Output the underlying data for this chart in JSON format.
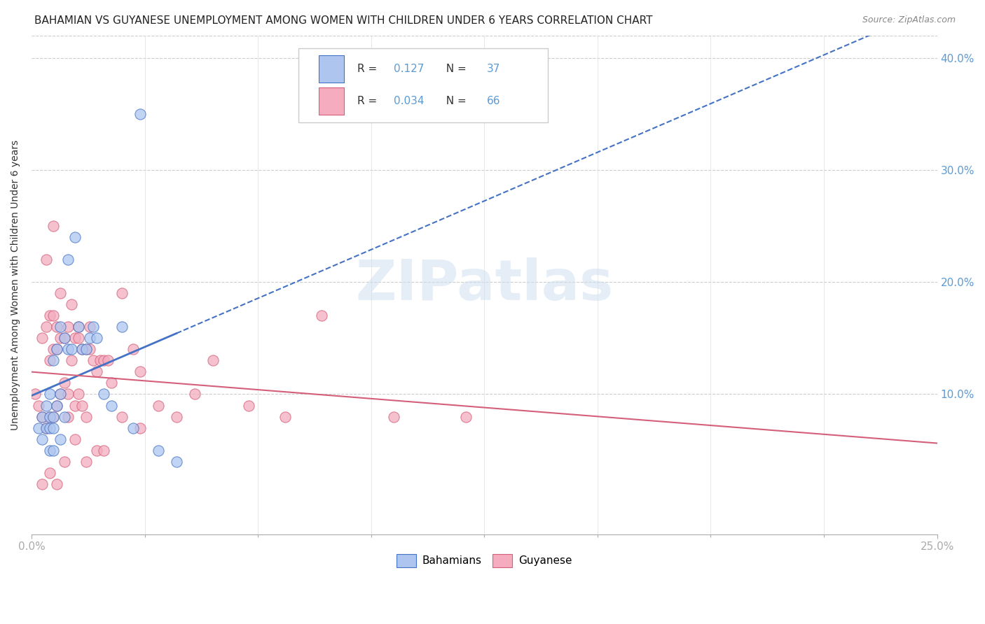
{
  "title": "BAHAMIAN VS GUYANESE UNEMPLOYMENT AMONG WOMEN WITH CHILDREN UNDER 6 YEARS CORRELATION CHART",
  "source": "Source: ZipAtlas.com",
  "ylabel": "Unemployment Among Women with Children Under 6 years",
  "background_color": "#ffffff",
  "watermark": "ZIPatlas",
  "legend_entries": [
    {
      "label": "Bahamians",
      "R": "0.127",
      "N": "37",
      "color": "#aec6ef",
      "line_color": "#4472c4"
    },
    {
      "label": "Guyanese",
      "R": "0.034",
      "N": "66",
      "color": "#f4acbe",
      "line_color": "#d45f7a"
    }
  ],
  "blue_scatter_x": [
    0.002,
    0.003,
    0.003,
    0.004,
    0.004,
    0.005,
    0.005,
    0.005,
    0.005,
    0.006,
    0.006,
    0.006,
    0.007,
    0.007,
    0.008,
    0.008,
    0.009,
    0.009,
    0.01,
    0.01,
    0.011,
    0.012,
    0.013,
    0.014,
    0.015,
    0.016,
    0.017,
    0.018,
    0.02,
    0.022,
    0.025,
    0.028,
    0.03,
    0.035,
    0.04,
    0.008,
    0.006
  ],
  "blue_scatter_y": [
    0.07,
    0.06,
    0.08,
    0.07,
    0.09,
    0.07,
    0.08,
    0.1,
    0.05,
    0.08,
    0.07,
    0.13,
    0.09,
    0.14,
    0.1,
    0.16,
    0.15,
    0.08,
    0.14,
    0.22,
    0.14,
    0.24,
    0.16,
    0.14,
    0.14,
    0.15,
    0.16,
    0.15,
    0.1,
    0.09,
    0.16,
    0.07,
    0.35,
    0.05,
    0.04,
    0.06,
    0.05
  ],
  "pink_scatter_x": [
    0.001,
    0.002,
    0.003,
    0.003,
    0.004,
    0.004,
    0.005,
    0.005,
    0.005,
    0.006,
    0.006,
    0.006,
    0.007,
    0.007,
    0.007,
    0.008,
    0.008,
    0.009,
    0.009,
    0.01,
    0.01,
    0.011,
    0.011,
    0.012,
    0.012,
    0.013,
    0.013,
    0.014,
    0.014,
    0.015,
    0.015,
    0.016,
    0.017,
    0.018,
    0.019,
    0.02,
    0.021,
    0.022,
    0.025,
    0.028,
    0.03,
    0.035,
    0.04,
    0.045,
    0.05,
    0.06,
    0.07,
    0.08,
    0.1,
    0.12,
    0.003,
    0.005,
    0.007,
    0.009,
    0.012,
    0.015,
    0.018,
    0.02,
    0.025,
    0.03,
    0.004,
    0.006,
    0.008,
    0.01,
    0.013,
    0.016
  ],
  "pink_scatter_y": [
    0.1,
    0.09,
    0.08,
    0.15,
    0.07,
    0.16,
    0.08,
    0.13,
    0.17,
    0.08,
    0.14,
    0.17,
    0.09,
    0.14,
    0.16,
    0.1,
    0.15,
    0.11,
    0.15,
    0.1,
    0.16,
    0.13,
    0.18,
    0.09,
    0.15,
    0.1,
    0.15,
    0.09,
    0.14,
    0.08,
    0.14,
    0.14,
    0.13,
    0.12,
    0.13,
    0.13,
    0.13,
    0.11,
    0.19,
    0.14,
    0.12,
    0.09,
    0.08,
    0.1,
    0.13,
    0.09,
    0.08,
    0.17,
    0.08,
    0.08,
    0.02,
    0.03,
    0.02,
    0.04,
    0.06,
    0.04,
    0.05,
    0.05,
    0.08,
    0.07,
    0.22,
    0.25,
    0.19,
    0.08,
    0.16,
    0.16
  ],
  "xmin": 0.0,
  "xmax": 0.25,
  "ymin": -0.025,
  "ymax": 0.42,
  "right_ytick_vals": [
    0.4,
    0.3,
    0.2,
    0.1
  ],
  "right_ytick_labels": [
    "40.0%",
    "30.0%",
    "20.0%",
    "10.0%"
  ],
  "grid_color": "#cccccc",
  "title_fontsize": 11,
  "right_axis_color": "#5b9bd5",
  "n_color": "#e06000"
}
